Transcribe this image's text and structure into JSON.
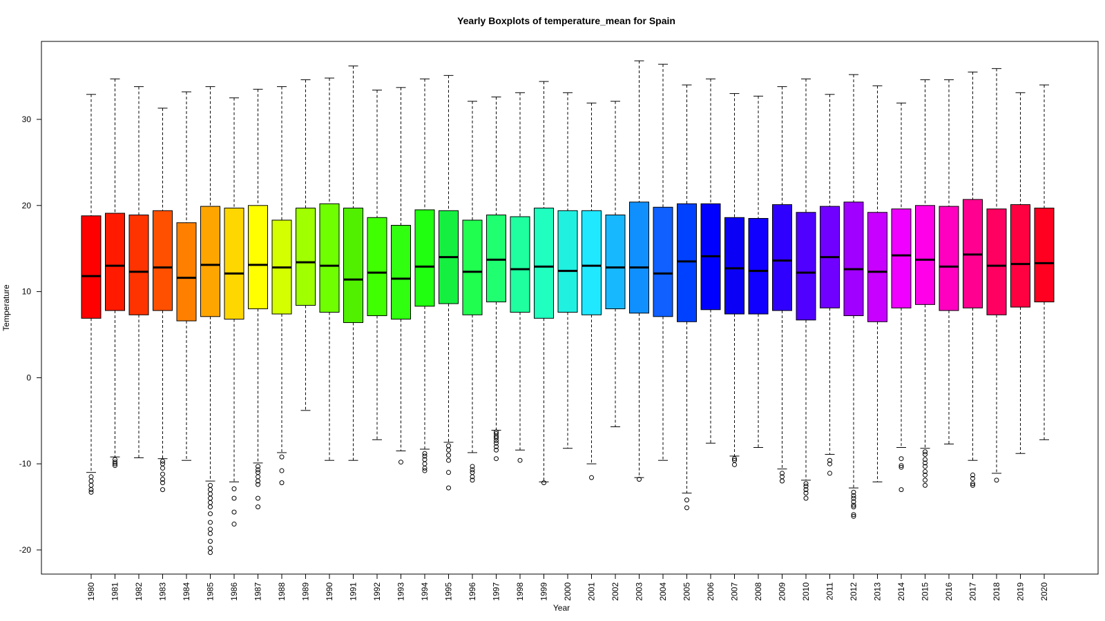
{
  "chart_data": {
    "type": "boxplot",
    "title": "Yearly Boxplots of temperature_mean for Spain",
    "xlabel": "Year",
    "ylabel": "Temperature",
    "ylim": [
      -21,
      38
    ],
    "yticks": [
      -20,
      -10,
      0,
      10,
      20,
      30
    ],
    "grid": false,
    "legend": "none",
    "categories": [
      "1980",
      "1981",
      "1982",
      "1983",
      "1984",
      "1985",
      "1986",
      "1987",
      "1988",
      "1989",
      "1990",
      "1991",
      "1992",
      "1993",
      "1994",
      "1995",
      "1996",
      "1997",
      "1998",
      "1999",
      "2000",
      "2001",
      "2002",
      "2003",
      "2004",
      "2005",
      "2006",
      "2007",
      "2008",
      "2009",
      "2010",
      "2011",
      "2012",
      "2013",
      "2014",
      "2015",
      "2016",
      "2017",
      "2018",
      "2019",
      "2020"
    ],
    "colors": [
      "#FF0000",
      "#FF1A00",
      "#FF3300",
      "#FF5000",
      "#FF8000",
      "#FFA500",
      "#FFD700",
      "#FFFF00",
      "#D4FF00",
      "#A0FF00",
      "#70FF00",
      "#50F000",
      "#40FF00",
      "#30FF10",
      "#20FF10",
      "#15F040",
      "#20FF50",
      "#20FF70",
      "#20FFA0",
      "#20FFC0",
      "#20F0E0",
      "#20E8FF",
      "#18B8FF",
      "#1090FF",
      "#1060FF",
      "#0040FF",
      "#0000FF",
      "#0A00F5",
      "#1000FF",
      "#3000FF",
      "#5000FF",
      "#7000FF",
      "#A000FF",
      "#C800FF",
      "#F000FF",
      "#FF00E8",
      "#FF00C0",
      "#FF0090",
      "#FF0060",
      "#FF0040",
      "#FF0020"
    ],
    "boxes": [
      {
        "low": -11.0,
        "q1": 6.9,
        "median": 11.8,
        "q3": 18.8,
        "high": 32.9,
        "outliers": [
          -11.5,
          -12.0,
          -12.5,
          -13.0,
          -13.3
        ]
      },
      {
        "low": -9.2,
        "q1": 7.8,
        "median": 13.0,
        "q3": 19.1,
        "high": 34.7,
        "outliers": [
          -9.5,
          -9.8,
          -10.0,
          -10.2
        ]
      },
      {
        "low": -9.3,
        "q1": 7.3,
        "median": 12.3,
        "q3": 18.9,
        "high": 33.8,
        "outliers": []
      },
      {
        "low": -9.4,
        "q1": 7.8,
        "median": 12.8,
        "q3": 19.4,
        "high": 31.3,
        "outliers": [
          -9.7,
          -10.0,
          -10.5,
          -11.2,
          -11.8,
          -12.2,
          -13.0
        ]
      },
      {
        "low": -9.6,
        "q1": 6.6,
        "median": 11.6,
        "q3": 18.0,
        "high": 33.2,
        "outliers": []
      },
      {
        "low": -12.0,
        "q1": 7.1,
        "median": 13.1,
        "q3": 19.9,
        "high": 33.8,
        "outliers": [
          -12.5,
          -13.0,
          -13.5,
          -14.0,
          -14.5,
          -15.0,
          -15.8,
          -16.8,
          -17.6,
          -18.1,
          -19.0,
          -19.8,
          -20.3
        ]
      },
      {
        "low": -12.1,
        "q1": 6.8,
        "median": 12.1,
        "q3": 19.7,
        "high": 32.5,
        "outliers": [
          -12.9,
          -14.0,
          -15.6,
          -17.0
        ]
      },
      {
        "low": -9.9,
        "q1": 8.0,
        "median": 13.1,
        "q3": 20.0,
        "high": 33.5,
        "outliers": [
          -10.3,
          -10.7,
          -11.0,
          -11.5,
          -12.0,
          -12.4,
          -14.0,
          -15.0
        ]
      },
      {
        "low": -8.7,
        "q1": 7.4,
        "median": 12.8,
        "q3": 18.3,
        "high": 33.8,
        "outliers": [
          -9.2,
          -10.8,
          -12.2
        ]
      },
      {
        "low": -3.8,
        "q1": 8.4,
        "median": 13.4,
        "q3": 19.7,
        "high": 34.6,
        "outliers": []
      },
      {
        "low": -9.6,
        "q1": 7.6,
        "median": 13.0,
        "q3": 20.2,
        "high": 34.8,
        "outliers": []
      },
      {
        "low": -9.6,
        "q1": 6.4,
        "median": 11.4,
        "q3": 19.7,
        "high": 36.2,
        "outliers": []
      },
      {
        "low": -7.2,
        "q1": 7.2,
        "median": 12.2,
        "q3": 18.6,
        "high": 33.4,
        "outliers": []
      },
      {
        "low": -8.5,
        "q1": 6.8,
        "median": 11.5,
        "q3": 17.7,
        "high": 33.7,
        "outliers": [
          -9.8
        ]
      },
      {
        "low": -8.3,
        "q1": 8.3,
        "median": 12.9,
        "q3": 19.5,
        "high": 34.7,
        "outliers": [
          -8.8,
          -9.1,
          -9.5,
          -10.0,
          -10.5,
          -10.8
        ]
      },
      {
        "low": -7.5,
        "q1": 8.6,
        "median": 14.0,
        "q3": 19.4,
        "high": 35.1,
        "outliers": [
          -7.9,
          -8.4,
          -9.0,
          -9.6,
          -11.0,
          -12.8
        ]
      },
      {
        "low": -8.7,
        "q1": 7.3,
        "median": 12.3,
        "q3": 18.3,
        "high": 32.1,
        "outliers": [
          -10.3,
          -10.7,
          -11.0,
          -11.5,
          -11.9
        ]
      },
      {
        "low": -6.1,
        "q1": 8.8,
        "median": 13.7,
        "q3": 18.9,
        "high": 32.6,
        "outliers": [
          -6.3,
          -6.5,
          -6.8,
          -7.0,
          -7.3,
          -7.6,
          -8.0,
          -8.4,
          -9.4
        ]
      },
      {
        "low": -8.4,
        "q1": 7.6,
        "median": 12.6,
        "q3": 18.7,
        "high": 33.1,
        "outliers": [
          -9.6
        ]
      },
      {
        "low": -12.1,
        "q1": 6.9,
        "median": 12.9,
        "q3": 19.7,
        "high": 34.4,
        "outliers": [
          -12.2
        ]
      },
      {
        "low": -8.2,
        "q1": 7.6,
        "median": 12.4,
        "q3": 19.4,
        "high": 33.1,
        "outliers": []
      },
      {
        "low": -10.0,
        "q1": 7.3,
        "median": 13.0,
        "q3": 19.4,
        "high": 31.9,
        "outliers": [
          -11.6
        ]
      },
      {
        "low": -5.7,
        "q1": 8.0,
        "median": 12.8,
        "q3": 18.9,
        "high": 32.1,
        "outliers": []
      },
      {
        "low": -11.6,
        "q1": 7.5,
        "median": 12.8,
        "q3": 20.4,
        "high": 36.8,
        "outliers": [
          -11.8
        ]
      },
      {
        "low": -9.6,
        "q1": 7.1,
        "median": 12.1,
        "q3": 19.8,
        "high": 36.4,
        "outliers": []
      },
      {
        "low": -13.4,
        "q1": 6.5,
        "median": 13.5,
        "q3": 20.2,
        "high": 34.0,
        "outliers": [
          -14.2,
          -15.1
        ]
      },
      {
        "low": -7.6,
        "q1": 7.9,
        "median": 14.1,
        "q3": 20.2,
        "high": 34.7,
        "outliers": []
      },
      {
        "low": -9.1,
        "q1": 7.4,
        "median": 12.7,
        "q3": 18.6,
        "high": 33.0,
        "outliers": [
          -9.4,
          -9.6,
          -10.1
        ]
      },
      {
        "low": -8.1,
        "q1": 7.4,
        "median": 12.4,
        "q3": 18.5,
        "high": 32.7,
        "outliers": []
      },
      {
        "low": -10.6,
        "q1": 7.8,
        "median": 13.6,
        "q3": 20.1,
        "high": 33.8,
        "outliers": [
          -11.1,
          -11.5,
          -12.0
        ]
      },
      {
        "low": -11.9,
        "q1": 6.7,
        "median": 12.2,
        "q3": 19.2,
        "high": 34.7,
        "outliers": [
          -12.3,
          -12.6,
          -13.0,
          -13.4,
          -14.0
        ]
      },
      {
        "low": -8.9,
        "q1": 8.1,
        "median": 14.0,
        "q3": 19.9,
        "high": 32.9,
        "outliers": [
          -9.6,
          -10.0,
          -11.1
        ]
      },
      {
        "low": -12.8,
        "q1": 7.2,
        "median": 12.6,
        "q3": 20.4,
        "high": 35.2,
        "outliers": [
          -13.3,
          -13.7,
          -14.0,
          -14.4,
          -14.8,
          -15.0,
          -15.9,
          -16.1
        ]
      },
      {
        "low": -12.1,
        "q1": 6.5,
        "median": 12.3,
        "q3": 19.2,
        "high": 33.9,
        "outliers": []
      },
      {
        "low": -8.1,
        "q1": 8.1,
        "median": 14.2,
        "q3": 19.6,
        "high": 31.9,
        "outliers": [
          -9.4,
          -10.2,
          -10.4,
          -13.0
        ]
      },
      {
        "low": -8.2,
        "q1": 8.5,
        "median": 13.7,
        "q3": 20.0,
        "high": 34.6,
        "outliers": [
          -8.6,
          -8.9,
          -9.5,
          -9.9,
          -10.3,
          -10.9,
          -11.3,
          -11.9,
          -12.5
        ]
      },
      {
        "low": -7.7,
        "q1": 7.8,
        "median": 12.9,
        "q3": 19.9,
        "high": 34.6,
        "outliers": []
      },
      {
        "low": -9.6,
        "q1": 8.1,
        "median": 14.3,
        "q3": 20.7,
        "high": 35.5,
        "outliers": [
          -11.3,
          -11.7,
          -12.3,
          -12.5
        ]
      },
      {
        "low": -11.1,
        "q1": 7.3,
        "median": 13.0,
        "q3": 19.6,
        "high": 35.9,
        "outliers": [
          -11.9
        ]
      },
      {
        "low": -8.8,
        "q1": 8.2,
        "median": 13.2,
        "q3": 20.1,
        "high": 33.1,
        "outliers": []
      },
      {
        "low": -7.2,
        "q1": 8.8,
        "median": 13.3,
        "q3": 19.7,
        "high": 34.0,
        "outliers": []
      }
    ]
  }
}
